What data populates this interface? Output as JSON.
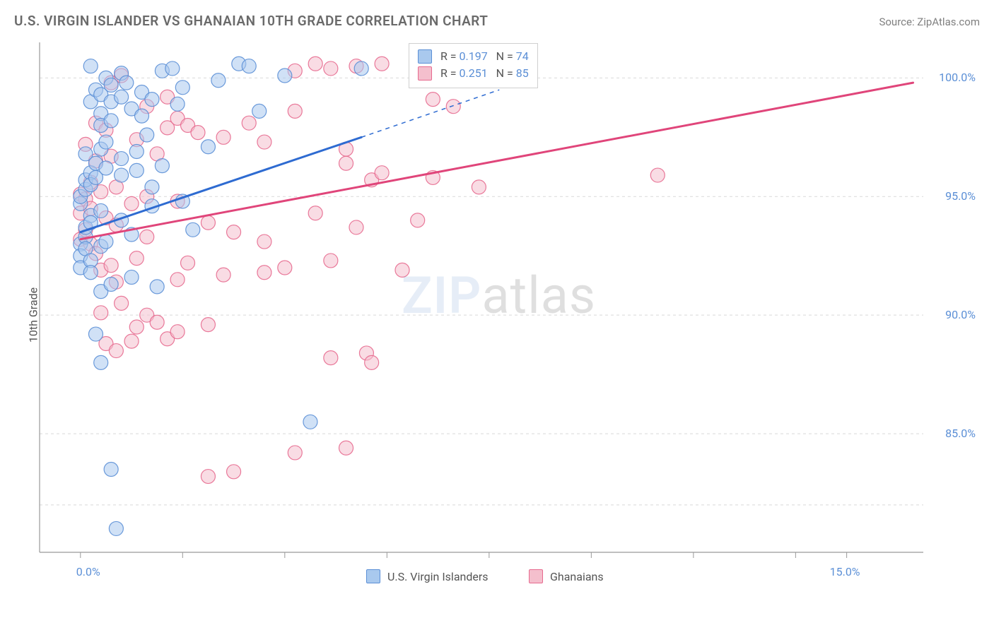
{
  "title": "U.S. VIRGIN ISLANDER VS GHANAIAN 10TH GRADE CORRELATION CHART",
  "source_label": "Source: ZipAtlas.com",
  "y_axis_label": "10th Grade",
  "watermark": {
    "bold": "ZIP",
    "rest": "atlas"
  },
  "chart": {
    "type": "scatter",
    "background_color": "#ffffff",
    "grid_color": "#d9d9d9",
    "grid_dash": "4 4",
    "plot_border_color": "#999999",
    "xlim": [
      -0.8,
      16.5
    ],
    "ylim": [
      80.0,
      101.5
    ],
    "x_ticks": [
      0.0,
      15.0
    ],
    "x_tick_labels": [
      "0.0%",
      "15.0%"
    ],
    "x_minor_ticks": [
      2,
      4,
      6,
      8,
      10,
      12,
      14
    ],
    "y_ticks": [
      85.0,
      90.0,
      95.0,
      100.0
    ],
    "y_tick_labels": [
      "85.0%",
      "90.0%",
      "95.0%",
      "100.0%"
    ],
    "tick_label_color": "#5b8fd6",
    "tick_label_fontsize": 16,
    "marker_radius": 10,
    "marker_opacity": 0.55,
    "line_width_solid": 3,
    "series": [
      {
        "id": "usvi",
        "label": "U.S. Virgin Islanders",
        "color_fill": "#a9c9ee",
        "color_stroke": "#5b8fd6",
        "R": "0.197",
        "N": "74",
        "trend": {
          "x1": 0.0,
          "y1": 93.5,
          "x2_solid": 5.5,
          "y2_solid": 97.5,
          "x2": 8.2,
          "y2": 99.5
        },
        "points": [
          [
            0.0,
            94.7
          ],
          [
            0.0,
            95.0
          ],
          [
            0.0,
            93.0
          ],
          [
            0.0,
            92.5
          ],
          [
            0.0,
            92.0
          ],
          [
            0.1,
            95.3
          ],
          [
            0.1,
            95.7
          ],
          [
            0.1,
            96.8
          ],
          [
            0.1,
            93.3
          ],
          [
            0.1,
            93.7
          ],
          [
            0.1,
            92.8
          ],
          [
            0.2,
            100.5
          ],
          [
            0.2,
            99.0
          ],
          [
            0.2,
            96.0
          ],
          [
            0.2,
            95.5
          ],
          [
            0.2,
            94.2
          ],
          [
            0.2,
            93.9
          ],
          [
            0.2,
            92.3
          ],
          [
            0.2,
            91.8
          ],
          [
            0.3,
            99.5
          ],
          [
            0.3,
            89.2
          ],
          [
            0.3,
            96.4
          ],
          [
            0.3,
            95.8
          ],
          [
            0.4,
            98.5
          ],
          [
            0.4,
            99.3
          ],
          [
            0.4,
            98.0
          ],
          [
            0.4,
            97.0
          ],
          [
            0.4,
            94.4
          ],
          [
            0.4,
            92.9
          ],
          [
            0.4,
            91.0
          ],
          [
            0.4,
            88.0
          ],
          [
            0.5,
            100.0
          ],
          [
            0.5,
            97.3
          ],
          [
            0.5,
            96.2
          ],
          [
            0.5,
            93.1
          ],
          [
            0.6,
            99.7
          ],
          [
            0.6,
            99.0
          ],
          [
            0.6,
            98.2
          ],
          [
            0.6,
            91.3
          ],
          [
            0.6,
            83.5
          ],
          [
            0.7,
            81.0
          ],
          [
            0.8,
            100.2
          ],
          [
            0.8,
            99.2
          ],
          [
            0.8,
            96.6
          ],
          [
            0.8,
            95.9
          ],
          [
            0.8,
            94.0
          ],
          [
            0.9,
            99.8
          ],
          [
            1.0,
            98.7
          ],
          [
            1.0,
            93.4
          ],
          [
            1.0,
            91.6
          ],
          [
            1.1,
            96.9
          ],
          [
            1.1,
            96.1
          ],
          [
            1.2,
            99.4
          ],
          [
            1.2,
            98.4
          ],
          [
            1.3,
            97.6
          ],
          [
            1.4,
            99.1
          ],
          [
            1.4,
            95.4
          ],
          [
            1.4,
            94.6
          ],
          [
            1.5,
            91.2
          ],
          [
            1.6,
            100.3
          ],
          [
            1.6,
            96.3
          ],
          [
            1.8,
            100.4
          ],
          [
            1.9,
            98.9
          ],
          [
            2.0,
            99.6
          ],
          [
            2.0,
            94.8
          ],
          [
            2.2,
            93.6
          ],
          [
            2.5,
            97.1
          ],
          [
            2.7,
            99.9
          ],
          [
            3.1,
            100.6
          ],
          [
            3.3,
            100.5
          ],
          [
            3.5,
            98.6
          ],
          [
            4.0,
            100.1
          ],
          [
            4.5,
            85.5
          ],
          [
            5.5,
            100.4
          ]
        ]
      },
      {
        "id": "gh",
        "label": "Ghanaians",
        "color_fill": "#f4bfcd",
        "color_stroke": "#e76a8f",
        "R": "0.251",
        "N": "85",
        "trend": {
          "x1": 0.0,
          "y1": 93.2,
          "x2": 16.3,
          "y2": 99.8
        },
        "points": [
          [
            0.0,
            95.1
          ],
          [
            0.0,
            94.3
          ],
          [
            0.0,
            93.2
          ],
          [
            0.1,
            97.2
          ],
          [
            0.1,
            94.9
          ],
          [
            0.1,
            93.6
          ],
          [
            0.2,
            95.6
          ],
          [
            0.2,
            94.5
          ],
          [
            0.2,
            93.0
          ],
          [
            0.3,
            98.1
          ],
          [
            0.3,
            96.5
          ],
          [
            0.3,
            92.6
          ],
          [
            0.4,
            95.2
          ],
          [
            0.4,
            91.9
          ],
          [
            0.4,
            90.1
          ],
          [
            0.5,
            97.8
          ],
          [
            0.5,
            94.1
          ],
          [
            0.5,
            88.8
          ],
          [
            0.6,
            99.8
          ],
          [
            0.6,
            96.7
          ],
          [
            0.6,
            92.1
          ],
          [
            0.7,
            95.4
          ],
          [
            0.7,
            93.8
          ],
          [
            0.7,
            91.4
          ],
          [
            0.7,
            88.5
          ],
          [
            0.8,
            100.1
          ],
          [
            0.8,
            90.5
          ],
          [
            1.0,
            88.9
          ],
          [
            1.0,
            94.7
          ],
          [
            1.1,
            97.4
          ],
          [
            1.1,
            92.4
          ],
          [
            1.1,
            89.5
          ],
          [
            1.3,
            98.8
          ],
          [
            1.3,
            95.0
          ],
          [
            1.3,
            93.3
          ],
          [
            1.3,
            90.0
          ],
          [
            1.5,
            96.8
          ],
          [
            1.5,
            89.7
          ],
          [
            1.7,
            99.2
          ],
          [
            1.7,
            97.9
          ],
          [
            1.7,
            89.0
          ],
          [
            1.9,
            98.3
          ],
          [
            1.9,
            94.8
          ],
          [
            1.9,
            91.5
          ],
          [
            1.9,
            89.3
          ],
          [
            2.1,
            98.0
          ],
          [
            2.1,
            92.2
          ],
          [
            2.3,
            97.7
          ],
          [
            2.5,
            93.9
          ],
          [
            2.5,
            83.2
          ],
          [
            2.5,
            89.6
          ],
          [
            2.8,
            97.5
          ],
          [
            2.8,
            91.7
          ],
          [
            3.0,
            93.5
          ],
          [
            3.0,
            83.4
          ],
          [
            3.3,
            98.1
          ],
          [
            3.6,
            97.3
          ],
          [
            3.6,
            93.1
          ],
          [
            3.6,
            91.8
          ],
          [
            4.0,
            92.0
          ],
          [
            4.2,
            100.3
          ],
          [
            4.2,
            98.6
          ],
          [
            4.2,
            84.2
          ],
          [
            4.6,
            94.3
          ],
          [
            4.6,
            100.6
          ],
          [
            4.9,
            100.4
          ],
          [
            4.9,
            92.3
          ],
          [
            4.9,
            88.2
          ],
          [
            5.2,
            96.4
          ],
          [
            5.2,
            97.0
          ],
          [
            5.2,
            84.4
          ],
          [
            5.4,
            100.5
          ],
          [
            5.4,
            93.7
          ],
          [
            5.6,
            88.4
          ],
          [
            5.7,
            95.7
          ],
          [
            5.7,
            88.0
          ],
          [
            5.9,
            96.0
          ],
          [
            5.9,
            100.6
          ],
          [
            6.3,
            91.9
          ],
          [
            6.6,
            94.0
          ],
          [
            6.9,
            99.1
          ],
          [
            6.9,
            95.8
          ],
          [
            7.3,
            98.8
          ],
          [
            7.8,
            95.4
          ],
          [
            11.3,
            95.9
          ]
        ]
      }
    ],
    "stats_legend": {
      "r_label": "R =",
      "n_label": "N =",
      "value_color": "#5b8fd6"
    },
    "bottom_legend_items": [
      {
        "series": "usvi"
      },
      {
        "series": "gh"
      }
    ]
  }
}
